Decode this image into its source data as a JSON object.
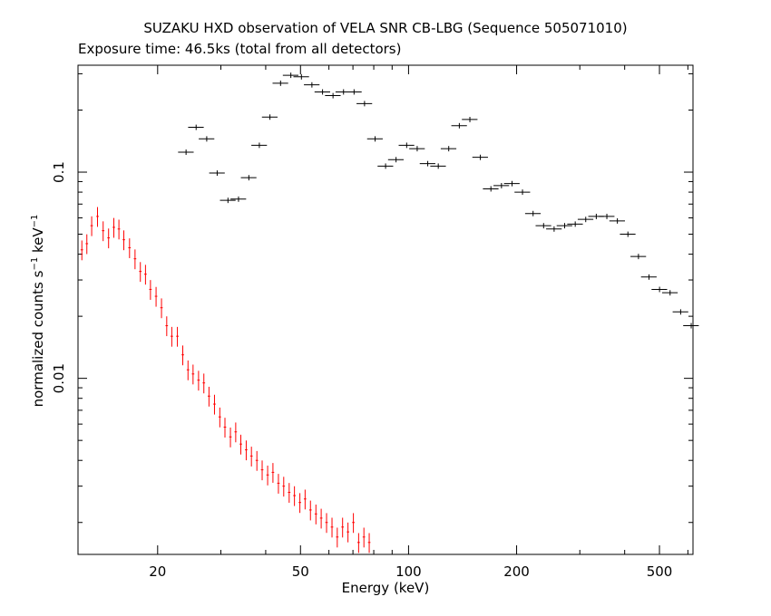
{
  "chart_data": {
    "type": "scatter",
    "title": "SUZAKU HXD observation of VELA SNR CB-LBG (Sequence 505071010)",
    "subtitle": "Exposure time: 46.5ks (total from all detectors)",
    "xlabel": "Energy (keV)",
    "ylabel_parts": {
      "base": "normalized counts s",
      "exp1": "−1",
      "mid": " keV",
      "exp2": "−1"
    },
    "x_scale": "log",
    "y_scale": "log",
    "xlim": [
      12,
      620
    ],
    "ylim": [
      0.0014,
      0.33
    ],
    "x_ticks": [
      {
        "value": 20,
        "label": "20"
      },
      {
        "value": 50,
        "label": "50"
      },
      {
        "value": 100,
        "label": "100"
      },
      {
        "value": 200,
        "label": "200"
      },
      {
        "value": 500,
        "label": "500"
      }
    ],
    "y_ticks": [
      {
        "value": 0.01,
        "label": "0.01"
      },
      {
        "value": 0.1,
        "label": "0.1"
      }
    ],
    "series": [
      {
        "color": "#000000",
        "x_err_frac": 0.05,
        "y_err_frac": 0.03,
        "points": [
          [
            24.0,
            0.125
          ],
          [
            25.6,
            0.165
          ],
          [
            27.4,
            0.145
          ],
          [
            29.3,
            0.099
          ],
          [
            31.4,
            0.073
          ],
          [
            33.6,
            0.074
          ],
          [
            35.9,
            0.094
          ],
          [
            38.4,
            0.135
          ],
          [
            41.1,
            0.185
          ],
          [
            44.0,
            0.27
          ],
          [
            47.0,
            0.295
          ],
          [
            50.3,
            0.29
          ],
          [
            53.8,
            0.265
          ],
          [
            57.6,
            0.245
          ],
          [
            61.6,
            0.235
          ],
          [
            65.9,
            0.245
          ],
          [
            70.5,
            0.245
          ],
          [
            75.4,
            0.215
          ],
          [
            80.7,
            0.145
          ],
          [
            86.3,
            0.107
          ],
          [
            92.3,
            0.115
          ],
          [
            98.8,
            0.135
          ],
          [
            105.7,
            0.13
          ],
          [
            113.1,
            0.11
          ],
          [
            121.0,
            0.107
          ],
          [
            129.4,
            0.13
          ],
          [
            138.5,
            0.168
          ],
          [
            148.2,
            0.18
          ],
          [
            158.5,
            0.118
          ],
          [
            169.6,
            0.083
          ],
          [
            181.5,
            0.086
          ],
          [
            194.2,
            0.088
          ],
          [
            207.7,
            0.08
          ],
          [
            222.3,
            0.063
          ],
          [
            237.8,
            0.055
          ],
          [
            254.4,
            0.053
          ],
          [
            272.2,
            0.055
          ],
          [
            291.3,
            0.056
          ],
          [
            311.6,
            0.059
          ],
          [
            333.4,
            0.061
          ],
          [
            356.8,
            0.061
          ],
          [
            381.7,
            0.058
          ],
          [
            408.4,
            0.05
          ],
          [
            437.0,
            0.039
          ],
          [
            467.6,
            0.031
          ],
          [
            500.3,
            0.027
          ],
          [
            535.3,
            0.026
          ],
          [
            572.8,
            0.021
          ],
          [
            612.9,
            0.018
          ]
        ]
      },
      {
        "color": "#ff0000",
        "x_err_frac": 0.008,
        "y_err_frac": 0.11,
        "points": [
          [
            12.3,
            0.042
          ],
          [
            12.7,
            0.045
          ],
          [
            13.1,
            0.055
          ],
          [
            13.6,
            0.061
          ],
          [
            14.1,
            0.052
          ],
          [
            14.6,
            0.048
          ],
          [
            15.1,
            0.054
          ],
          [
            15.6,
            0.053
          ],
          [
            16.1,
            0.047
          ],
          [
            16.7,
            0.043
          ],
          [
            17.3,
            0.038
          ],
          [
            17.9,
            0.033
          ],
          [
            18.5,
            0.032
          ],
          [
            19.1,
            0.027
          ],
          [
            19.8,
            0.025
          ],
          [
            20.5,
            0.022
          ],
          [
            21.2,
            0.018
          ],
          [
            21.9,
            0.016
          ],
          [
            22.7,
            0.016
          ],
          [
            23.5,
            0.013
          ],
          [
            24.3,
            0.011
          ],
          [
            25.1,
            0.0105
          ],
          [
            26.0,
            0.0098
          ],
          [
            26.9,
            0.0095
          ],
          [
            27.8,
            0.0082
          ],
          [
            28.8,
            0.0075
          ],
          [
            29.8,
            0.0065
          ],
          [
            30.8,
            0.0058
          ],
          [
            31.9,
            0.0052
          ],
          [
            33.0,
            0.0055
          ],
          [
            34.1,
            0.0048
          ],
          [
            35.3,
            0.0045
          ],
          [
            36.5,
            0.0042
          ],
          [
            37.8,
            0.004
          ],
          [
            39.1,
            0.0036
          ],
          [
            40.5,
            0.0034
          ],
          [
            41.9,
            0.0035
          ],
          [
            43.4,
            0.0031
          ],
          [
            44.9,
            0.003
          ],
          [
            46.5,
            0.0028
          ],
          [
            48.1,
            0.0027
          ],
          [
            49.8,
            0.0025
          ],
          [
            51.5,
            0.0026
          ],
          [
            53.3,
            0.0023
          ],
          [
            55.2,
            0.0022
          ],
          [
            57.1,
            0.0021
          ],
          [
            59.1,
            0.002
          ],
          [
            61.2,
            0.0019
          ],
          [
            63.3,
            0.0017
          ],
          [
            65.5,
            0.0019
          ],
          [
            67.8,
            0.0018
          ],
          [
            70.2,
            0.002
          ],
          [
            72.6,
            0.0016
          ],
          [
            75.1,
            0.0017
          ],
          [
            77.7,
            0.0016
          ]
        ]
      }
    ]
  }
}
